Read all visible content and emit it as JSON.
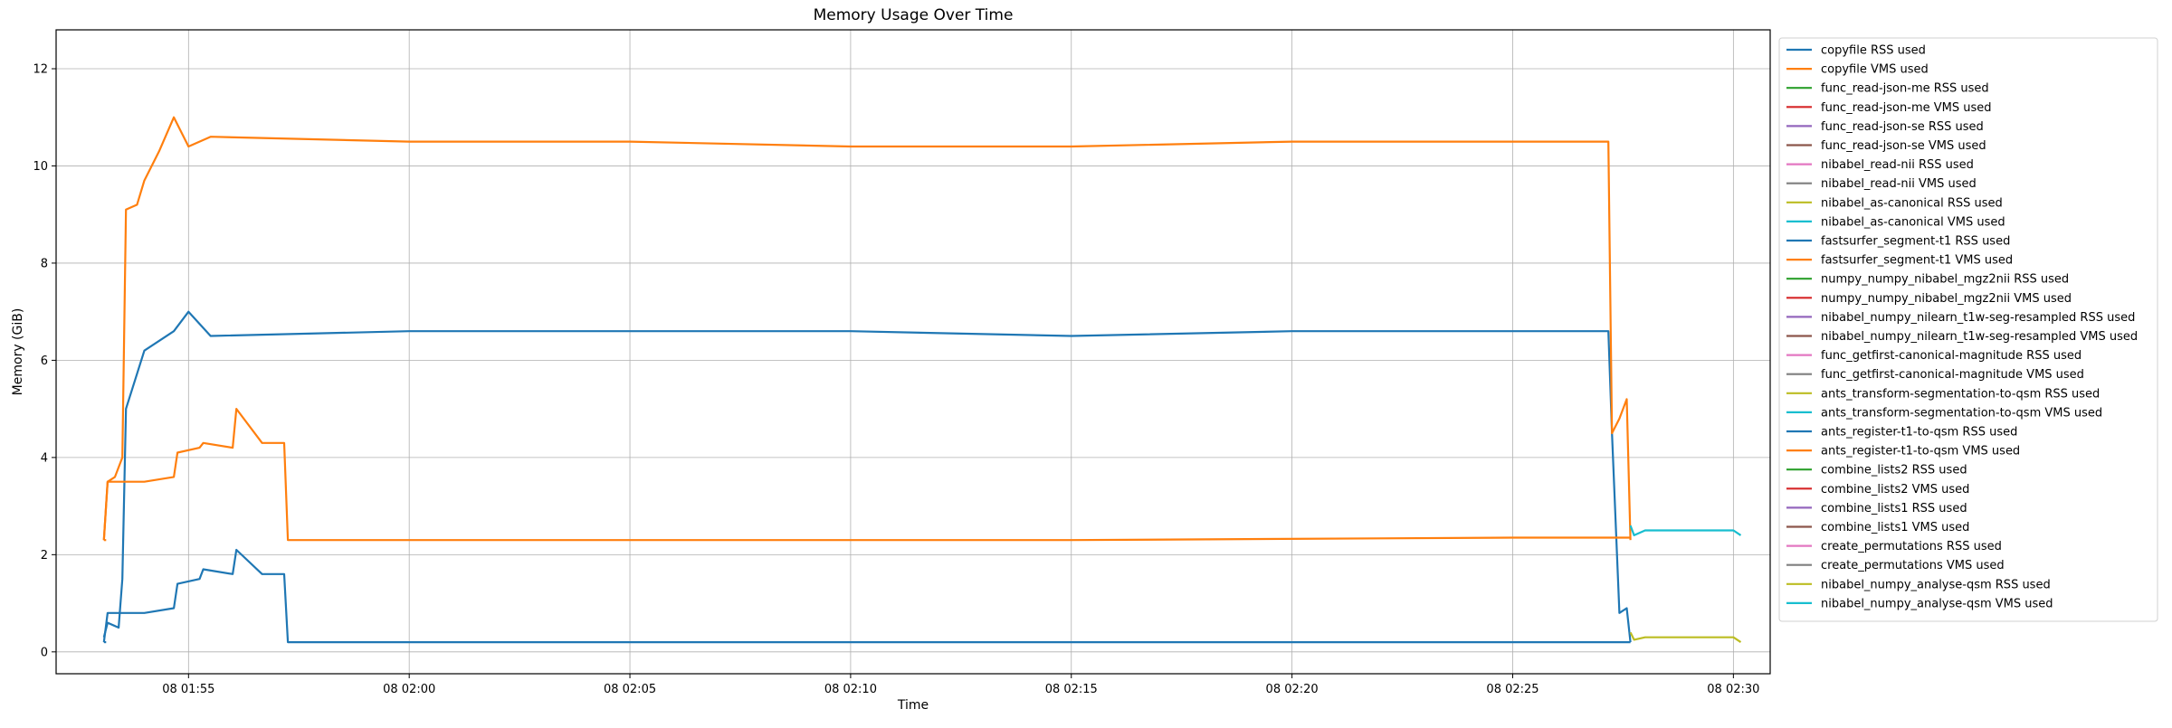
{
  "chart_data": {
    "type": "line",
    "title": "Memory Usage Over Time",
    "xlabel": "Time",
    "ylabel": "Memory (GiB)",
    "xlim": [
      "08 01:52:00",
      "08 02:30:50"
    ],
    "ylim": [
      -0.45,
      12.8
    ],
    "grid": true,
    "legend_position": "outside-right",
    "x_ticks": [
      {
        "label": "08 01:55",
        "time": "08 01:55:00"
      },
      {
        "label": "08 02:00",
        "time": "08 02:00:00"
      },
      {
        "label": "08 02:05",
        "time": "08 02:05:00"
      },
      {
        "label": "08 02:10",
        "time": "08 02:10:00"
      },
      {
        "label": "08 02:15",
        "time": "08 02:15:00"
      },
      {
        "label": "08 02:20",
        "time": "08 02:20:00"
      },
      {
        "label": "08 02:25",
        "time": "08 02:25:00"
      },
      {
        "label": "08 02:30",
        "time": "08 02:30:00"
      }
    ],
    "y_ticks": [
      0,
      2,
      4,
      6,
      8,
      10,
      12
    ],
    "series": [
      {
        "name": "copyfile RSS used",
        "color": "#1f77b4",
        "x": [
          "08 01:53:05",
          "08 01:53:08"
        ],
        "y": [
          0.2,
          0.2
        ]
      },
      {
        "name": "copyfile VMS used",
        "color": "#ff7f0e",
        "x": [
          "08 01:53:05",
          "08 01:53:08"
        ],
        "y": [
          2.3,
          2.3
        ]
      },
      {
        "name": "func_read-json-me RSS used",
        "color": "#2ca02c",
        "x": [],
        "y": []
      },
      {
        "name": "func_read-json-me VMS used",
        "color": "#d62728",
        "x": [],
        "y": []
      },
      {
        "name": "func_read-json-se RSS used",
        "color": "#9467bd",
        "x": [],
        "y": []
      },
      {
        "name": "func_read-json-se VMS used",
        "color": "#8c564b",
        "x": [],
        "y": []
      },
      {
        "name": "nibabel_read-nii RSS used",
        "color": "#e377c2",
        "x": [],
        "y": []
      },
      {
        "name": "nibabel_read-nii VMS used",
        "color": "#7f7f7f",
        "x": [],
        "y": []
      },
      {
        "name": "nibabel_as-canonical RSS used",
        "color": "#bcbd22",
        "x": [],
        "y": []
      },
      {
        "name": "nibabel_as-canonical VMS used",
        "color": "#17becf",
        "x": [],
        "y": []
      },
      {
        "name": "fastsurfer_segment-t1 RSS used",
        "color": "#1f77b4",
        "x": [
          "08 01:53:05",
          "08 01:53:10",
          "08 01:53:25",
          "08 01:53:30",
          "08 01:53:35",
          "08 01:54:00",
          "08 01:54:20",
          "08 01:54:40",
          "08 01:55:00",
          "08 01:55:30",
          "08 02:00:00",
          "08 02:05:00",
          "08 02:10:00",
          "08 02:15:00",
          "08 02:20:00",
          "08 02:25:00",
          "08 02:27:10",
          "08 02:27:15",
          "08 02:27:25",
          "08 02:27:35",
          "08 02:27:40"
        ],
        "y": [
          0.3,
          0.6,
          0.5,
          1.5,
          5.0,
          6.2,
          6.4,
          6.6,
          7.0,
          6.5,
          6.6,
          6.6,
          6.6,
          6.5,
          6.6,
          6.6,
          6.6,
          4.5,
          0.8,
          0.9,
          0.2
        ]
      },
      {
        "name": "fastsurfer_segment-t1 VMS used",
        "color": "#ff7f0e",
        "x": [
          "08 01:53:05",
          "08 01:53:10",
          "08 01:53:20",
          "08 01:53:30",
          "08 01:53:35",
          "08 01:53:50",
          "08 01:54:00",
          "08 01:54:20",
          "08 01:54:40",
          "08 01:55:00",
          "08 01:55:30",
          "08 02:00:00",
          "08 02:05:00",
          "08 02:10:00",
          "08 02:15:00",
          "08 02:20:00",
          "08 02:25:00",
          "08 02:27:10",
          "08 02:27:15",
          "08 02:27:25",
          "08 02:27:35",
          "08 02:27:40"
        ],
        "y": [
          2.3,
          3.5,
          3.6,
          4.0,
          9.1,
          9.2,
          9.7,
          10.3,
          11.0,
          10.4,
          10.6,
          10.5,
          10.5,
          10.4,
          10.4,
          10.5,
          10.5,
          10.5,
          4.5,
          4.8,
          5.2,
          2.3
        ]
      },
      {
        "name": "numpy_numpy_nibabel_mgz2nii RSS used",
        "color": "#2ca02c",
        "x": [],
        "y": []
      },
      {
        "name": "numpy_numpy_nibabel_mgz2nii VMS used",
        "color": "#d62728",
        "x": [],
        "y": []
      },
      {
        "name": "nibabel_numpy_nilearn_t1w-seg-resampled RSS used",
        "color": "#9467bd",
        "x": [],
        "y": []
      },
      {
        "name": "nibabel_numpy_nilearn_t1w-seg-resampled VMS used",
        "color": "#8c564b",
        "x": [],
        "y": []
      },
      {
        "name": "func_getfirst-canonical-magnitude RSS used",
        "color": "#e377c2",
        "x": [],
        "y": []
      },
      {
        "name": "func_getfirst-canonical-magnitude VMS used",
        "color": "#7f7f7f",
        "x": [],
        "y": []
      },
      {
        "name": "ants_transform-segmentation-to-qsm RSS used",
        "color": "#bcbd22",
        "x": [],
        "y": []
      },
      {
        "name": "ants_transform-segmentation-to-qsm VMS used",
        "color": "#17becf",
        "x": [],
        "y": []
      },
      {
        "name": "ants_register-t1-to-qsm RSS used",
        "color": "#1f77b4",
        "x": [
          "08 01:53:05",
          "08 01:53:10",
          "08 01:54:00",
          "08 01:54:40",
          "08 01:54:45",
          "08 01:55:15",
          "08 01:55:20",
          "08 01:56:00",
          "08 01:56:05",
          "08 01:56:40",
          "08 01:57:10",
          "08 01:57:15",
          "08 02:05:00",
          "08 02:15:00",
          "08 02:25:00",
          "08 02:27:40"
        ],
        "y": [
          0.2,
          0.8,
          0.8,
          0.9,
          1.4,
          1.5,
          1.7,
          1.6,
          2.1,
          1.6,
          1.6,
          0.2,
          0.2,
          0.2,
          0.2,
          0.2
        ]
      },
      {
        "name": "ants_register-t1-to-qsm VMS used",
        "color": "#ff7f0e",
        "x": [
          "08 01:53:05",
          "08 01:53:10",
          "08 01:54:00",
          "08 01:54:40",
          "08 01:54:45",
          "08 01:55:15",
          "08 01:55:20",
          "08 01:56:00",
          "08 01:56:05",
          "08 01:56:40",
          "08 01:57:10",
          "08 01:57:15",
          "08 02:05:00",
          "08 02:15:00",
          "08 02:25:00",
          "08 02:27:40"
        ],
        "y": [
          2.3,
          3.5,
          3.5,
          3.6,
          4.1,
          4.2,
          4.3,
          4.2,
          5.0,
          4.3,
          4.3,
          2.3,
          2.3,
          2.3,
          2.35,
          2.35
        ]
      },
      {
        "name": "combine_lists2 RSS used",
        "color": "#2ca02c",
        "x": [],
        "y": []
      },
      {
        "name": "combine_lists2 VMS used",
        "color": "#d62728",
        "x": [],
        "y": []
      },
      {
        "name": "combine_lists1 RSS used",
        "color": "#9467bd",
        "x": [],
        "y": []
      },
      {
        "name": "combine_lists1 VMS used",
        "color": "#8c564b",
        "x": [],
        "y": []
      },
      {
        "name": "create_permutations RSS used",
        "color": "#e377c2",
        "x": [],
        "y": []
      },
      {
        "name": "create_permutations VMS used",
        "color": "#7f7f7f",
        "x": [],
        "y": []
      },
      {
        "name": "nibabel_numpy_analyse-qsm RSS used",
        "color": "#bcbd22",
        "x": [
          "08 02:27:40",
          "08 02:27:45",
          "08 02:28:00",
          "08 02:29:00",
          "08 02:30:00",
          "08 02:30:10"
        ],
        "y": [
          0.4,
          0.25,
          0.3,
          0.3,
          0.3,
          0.2
        ]
      },
      {
        "name": "nibabel_numpy_analyse-qsm VMS used",
        "color": "#17becf",
        "x": [
          "08 02:27:40",
          "08 02:27:45",
          "08 02:28:00",
          "08 02:29:00",
          "08 02:30:00",
          "08 02:30:10"
        ],
        "y": [
          2.6,
          2.4,
          2.5,
          2.5,
          2.5,
          2.4
        ]
      }
    ]
  }
}
